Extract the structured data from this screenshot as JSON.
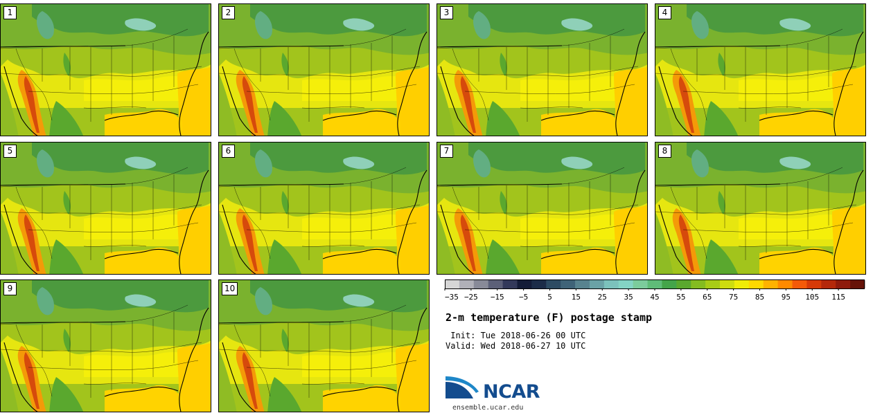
{
  "panels": [
    {
      "label": "1"
    },
    {
      "label": "2"
    },
    {
      "label": "3"
    },
    {
      "label": "4"
    },
    {
      "label": "5"
    },
    {
      "label": "6"
    },
    {
      "label": "7"
    },
    {
      "label": "8"
    },
    {
      "label": "9"
    },
    {
      "label": "10"
    }
  ],
  "colorbar": {
    "tick_labels": [
      "−35",
      "−25",
      "−15",
      "−5",
      "5",
      "15",
      "25",
      "35",
      "45",
      "55",
      "65",
      "75",
      "85",
      "95",
      "105",
      "115"
    ],
    "colors": [
      "#d6d6d6",
      "#b0b0b8",
      "#888a98",
      "#5c6078",
      "#33395a",
      "#141c38",
      "#1c2c48",
      "#2d4b63",
      "#3f6378",
      "#58838f",
      "#6aa2a6",
      "#7cc2bc",
      "#84d4c4",
      "#7ccc9c",
      "#5fbc78",
      "#44a44a",
      "#5aa82e",
      "#84bc20",
      "#a8cc16",
      "#cedc10",
      "#f0ec08",
      "#ffd800",
      "#ffb200",
      "#ff8a00",
      "#f45a08",
      "#d63a08",
      "#b4280a",
      "#8e1a0c",
      "#661208"
    ]
  },
  "title": "2-m temperature (F) postage stamp",
  "init": " Init: Tue 2018-06-26 00 UTC",
  "valid": "Valid: Wed 2018-06-27 10 UTC",
  "logo": {
    "text": "NCAR",
    "colors": {
      "blue": "#134c8e",
      "light": "#1e87c8"
    }
  },
  "site": "ensemble.ucar.edu"
}
